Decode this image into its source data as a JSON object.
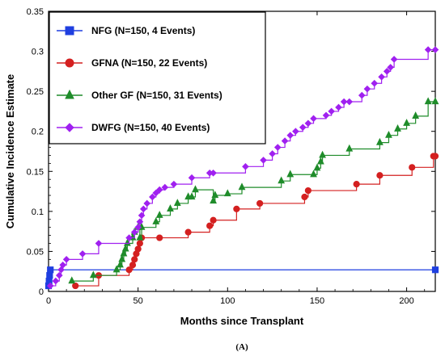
{
  "chart_data": {
    "type": "line",
    "xlabel": "Months since Transplant",
    "ylabel": "Cumulative Incidence Estimate",
    "caption": "(A)",
    "xlim": [
      0,
      216
    ],
    "ylim": [
      0,
      0.35
    ],
    "xticks": [
      "0",
      "50",
      "100",
      "150",
      "200"
    ],
    "yticks": [
      "0",
      "0.05",
      "0.1",
      "0.15",
      "0.2",
      "0.25",
      "0.3",
      "0.35"
    ],
    "xtick_values": [
      0,
      50,
      100,
      150,
      200
    ],
    "ytick_values": [
      0,
      0.05,
      0.1,
      0.15,
      0.2,
      0.25,
      0.3,
      0.35
    ],
    "legend_position": "top-left",
    "series": [
      {
        "name": "NFG (N=150, 4 Events)",
        "color": "#1f3fe0",
        "marker": "square",
        "x": [
          0,
          0.3,
          0.6,
          1,
          216
        ],
        "y": [
          0.007,
          0.013,
          0.02,
          0.027,
          0.027
        ]
      },
      {
        "name": "GFNA (N=150, 22 Events)",
        "color": "#d42020",
        "marker": "circle",
        "x": [
          15,
          28,
          45,
          47,
          48,
          49,
          50,
          51,
          52,
          62,
          78,
          90,
          92,
          105,
          118,
          143,
          145,
          172,
          185,
          203,
          215,
          216
        ],
        "y": [
          0.007,
          0.02,
          0.027,
          0.033,
          0.04,
          0.047,
          0.053,
          0.06,
          0.067,
          0.067,
          0.074,
          0.082,
          0.089,
          0.103,
          0.11,
          0.118,
          0.126,
          0.134,
          0.145,
          0.155,
          0.169,
          0.169
        ]
      },
      {
        "name": "Other GF (N=150, 31 Events)",
        "color": "#1f8c2a",
        "marker": "triangle",
        "x": [
          13,
          25,
          38,
          40,
          41,
          42,
          43,
          44,
          47,
          48,
          50,
          51,
          52,
          60,
          62,
          68,
          72,
          78,
          80,
          82,
          92,
          93,
          100,
          108,
          130,
          135,
          148,
          150,
          152,
          153,
          168,
          185,
          190,
          195,
          200,
          205,
          212,
          216
        ],
        "y": [
          0.013,
          0.02,
          0.027,
          0.033,
          0.04,
          0.047,
          0.053,
          0.06,
          0.067,
          0.074,
          0.08,
          0.067,
          0.08,
          0.087,
          0.095,
          0.103,
          0.11,
          0.118,
          0.118,
          0.127,
          0.113,
          0.12,
          0.122,
          0.13,
          0.138,
          0.146,
          0.146,
          0.154,
          0.162,
          0.17,
          0.178,
          0.186,
          0.195,
          0.203,
          0.21,
          0.219,
          0.237,
          0.237
        ]
      },
      {
        "name": "DWFG (N=150, 40 Events)",
        "color": "#a020f0",
        "marker": "diamond",
        "x": [
          1,
          4,
          6,
          7,
          8,
          10,
          19,
          28,
          45,
          48,
          50,
          51,
          52,
          53,
          55,
          58,
          60,
          62,
          65,
          70,
          80,
          90,
          92,
          110,
          120,
          125,
          128,
          132,
          135,
          138,
          142,
          145,
          148,
          155,
          158,
          162,
          165,
          168,
          175,
          178,
          182,
          186,
          189,
          191,
          193,
          212,
          216
        ],
        "y": [
          0.007,
          0.013,
          0.02,
          0.027,
          0.033,
          0.04,
          0.047,
          0.06,
          0.067,
          0.074,
          0.08,
          0.087,
          0.095,
          0.103,
          0.11,
          0.118,
          0.123,
          0.127,
          0.13,
          0.134,
          0.142,
          0.148,
          0.148,
          0.156,
          0.164,
          0.172,
          0.18,
          0.188,
          0.195,
          0.2,
          0.205,
          0.21,
          0.216,
          0.22,
          0.225,
          0.23,
          0.237,
          0.237,
          0.245,
          0.253,
          0.26,
          0.268,
          0.275,
          0.28,
          0.29,
          0.302,
          0.302
        ]
      }
    ]
  }
}
